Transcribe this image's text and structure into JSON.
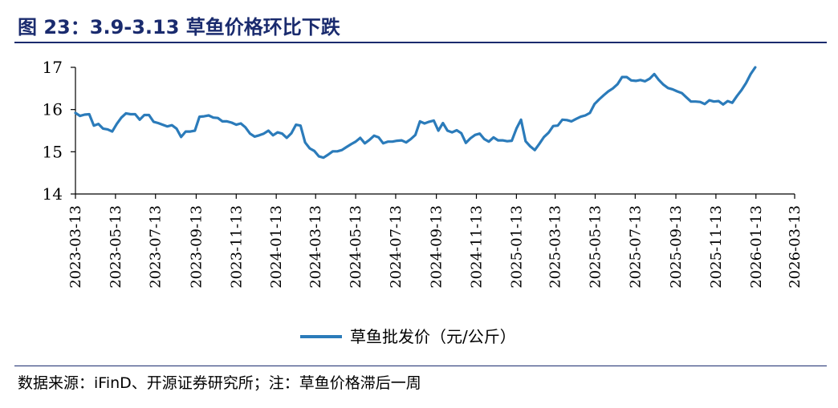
{
  "title": "图 23：3.9-3.13 草鱼价格环比下跌",
  "source": "数据来源：iFinD、开源证券研究所；注：草鱼价格滞后一周",
  "colors": {
    "line": "#2b7bba",
    "title": "#1a2b6e"
  },
  "chart_data": {
    "type": "line",
    "x_tick_labels": [
      "2023-03-13",
      "2023-05-13",
      "2023-07-13",
      "2023-09-13",
      "2023-11-13",
      "2024-01-13",
      "2024-03-13",
      "2024-05-13",
      "2024-07-13",
      "2024-09-13",
      "2024-11-13",
      "2025-01-13",
      "2025-03-13",
      "2025-05-13",
      "2025-07-13",
      "2025-09-13",
      "2025-11-13",
      "2026-01-13",
      "2026-03-13"
    ],
    "y_ticks": [
      14,
      15,
      16,
      17
    ],
    "ylim": [
      14,
      17
    ],
    "xlim": [
      "2023-03-13",
      "2026-03-13"
    ],
    "grid": false,
    "legend_position": "bottom",
    "series": [
      {
        "name": "草鱼批发价（元/公斤）",
        "points": [
          [
            "2023-03-13",
            15.92
          ],
          [
            "2023-03-20",
            15.85
          ],
          [
            "2023-03-27",
            15.88
          ],
          [
            "2023-04-03",
            15.89
          ],
          [
            "2023-04-10",
            15.62
          ],
          [
            "2023-04-17",
            15.66
          ],
          [
            "2023-04-24",
            15.55
          ],
          [
            "2023-05-01",
            15.53
          ],
          [
            "2023-05-08",
            15.48
          ],
          [
            "2023-05-15",
            15.66
          ],
          [
            "2023-05-22",
            15.81
          ],
          [
            "2023-05-29",
            15.91
          ],
          [
            "2023-06-05",
            15.89
          ],
          [
            "2023-06-12",
            15.89
          ],
          [
            "2023-06-19",
            15.76
          ],
          [
            "2023-06-26",
            15.87
          ],
          [
            "2023-07-03",
            15.87
          ],
          [
            "2023-07-10",
            15.71
          ],
          [
            "2023-07-17",
            15.68
          ],
          [
            "2023-07-24",
            15.64
          ],
          [
            "2023-07-31",
            15.6
          ],
          [
            "2023-08-07",
            15.63
          ],
          [
            "2023-08-14",
            15.55
          ],
          [
            "2023-08-21",
            15.35
          ],
          [
            "2023-08-28",
            15.48
          ],
          [
            "2023-09-04",
            15.48
          ],
          [
            "2023-09-11",
            15.5
          ],
          [
            "2023-09-18",
            15.83
          ],
          [
            "2023-09-25",
            15.84
          ],
          [
            "2023-10-02",
            15.86
          ],
          [
            "2023-10-09",
            15.81
          ],
          [
            "2023-10-16",
            15.8
          ],
          [
            "2023-10-23",
            15.72
          ],
          [
            "2023-10-30",
            15.72
          ],
          [
            "2023-11-06",
            15.69
          ],
          [
            "2023-11-13",
            15.64
          ],
          [
            "2023-11-20",
            15.67
          ],
          [
            "2023-11-27",
            15.58
          ],
          [
            "2023-12-04",
            15.43
          ],
          [
            "2023-12-11",
            15.36
          ],
          [
            "2023-12-18",
            15.39
          ],
          [
            "2023-12-25",
            15.43
          ],
          [
            "2024-01-01",
            15.5
          ],
          [
            "2024-01-08",
            15.39
          ],
          [
            "2024-01-15",
            15.46
          ],
          [
            "2024-01-22",
            15.43
          ],
          [
            "2024-01-29",
            15.33
          ],
          [
            "2024-02-05",
            15.44
          ],
          [
            "2024-02-12",
            15.64
          ],
          [
            "2024-02-19",
            15.62
          ],
          [
            "2024-02-26",
            15.22
          ],
          [
            "2024-03-04",
            15.08
          ],
          [
            "2024-03-11",
            15.02
          ],
          [
            "2024-03-18",
            14.89
          ],
          [
            "2024-03-25",
            14.86
          ],
          [
            "2024-04-01",
            14.93
          ],
          [
            "2024-04-08",
            15.01
          ],
          [
            "2024-04-15",
            15.01
          ],
          [
            "2024-04-22",
            15.04
          ],
          [
            "2024-04-29",
            15.11
          ],
          [
            "2024-05-06",
            15.18
          ],
          [
            "2024-05-13",
            15.24
          ],
          [
            "2024-05-20",
            15.33
          ],
          [
            "2024-05-27",
            15.2
          ],
          [
            "2024-06-03",
            15.28
          ],
          [
            "2024-06-10",
            15.38
          ],
          [
            "2024-06-17",
            15.34
          ],
          [
            "2024-06-24",
            15.2
          ],
          [
            "2024-07-01",
            15.24
          ],
          [
            "2024-07-08",
            15.24
          ],
          [
            "2024-07-15",
            15.26
          ],
          [
            "2024-07-22",
            15.27
          ],
          [
            "2024-07-29",
            15.22
          ],
          [
            "2024-08-05",
            15.3
          ],
          [
            "2024-08-12",
            15.4
          ],
          [
            "2024-08-19",
            15.72
          ],
          [
            "2024-08-26",
            15.67
          ],
          [
            "2024-09-02",
            15.71
          ],
          [
            "2024-09-09",
            15.74
          ],
          [
            "2024-09-16",
            15.5
          ],
          [
            "2024-09-23",
            15.68
          ],
          [
            "2024-09-30",
            15.5
          ],
          [
            "2024-10-07",
            15.46
          ],
          [
            "2024-10-14",
            15.51
          ],
          [
            "2024-10-21",
            15.44
          ],
          [
            "2024-10-28",
            15.21
          ],
          [
            "2024-11-04",
            15.32
          ],
          [
            "2024-11-11",
            15.4
          ],
          [
            "2024-11-18",
            15.43
          ],
          [
            "2024-11-25",
            15.3
          ],
          [
            "2024-12-02",
            15.24
          ],
          [
            "2024-12-09",
            15.34
          ],
          [
            "2024-12-16",
            15.27
          ],
          [
            "2024-12-23",
            15.27
          ],
          [
            "2024-12-30",
            15.25
          ],
          [
            "2025-01-06",
            15.26
          ],
          [
            "2025-01-13",
            15.55
          ],
          [
            "2025-01-20",
            15.76
          ],
          [
            "2025-01-27",
            15.25
          ],
          [
            "2025-02-03",
            15.13
          ],
          [
            "2025-02-10",
            15.04
          ],
          [
            "2025-02-17",
            15.19
          ],
          [
            "2025-02-24",
            15.35
          ],
          [
            "2025-03-03",
            15.45
          ],
          [
            "2025-03-10",
            15.61
          ],
          [
            "2025-03-17",
            15.62
          ],
          [
            "2025-03-24",
            15.76
          ],
          [
            "2025-03-31",
            15.75
          ],
          [
            "2025-04-07",
            15.72
          ],
          [
            "2025-04-14",
            15.78
          ],
          [
            "2025-04-21",
            15.83
          ],
          [
            "2025-04-28",
            15.86
          ],
          [
            "2025-05-05",
            15.92
          ],
          [
            "2025-05-12",
            16.13
          ],
          [
            "2025-05-19",
            16.24
          ],
          [
            "2025-05-26",
            16.34
          ],
          [
            "2025-06-02",
            16.43
          ],
          [
            "2025-06-09",
            16.5
          ],
          [
            "2025-06-16",
            16.6
          ],
          [
            "2025-06-23",
            16.77
          ],
          [
            "2025-06-30",
            16.77
          ],
          [
            "2025-07-07",
            16.69
          ],
          [
            "2025-07-14",
            16.68
          ],
          [
            "2025-07-21",
            16.7
          ],
          [
            "2025-07-28",
            16.67
          ],
          [
            "2025-08-04",
            16.73
          ],
          [
            "2025-08-11",
            16.84
          ],
          [
            "2025-08-18",
            16.7
          ],
          [
            "2025-08-25",
            16.59
          ],
          [
            "2025-09-01",
            16.51
          ],
          [
            "2025-09-08",
            16.48
          ],
          [
            "2025-09-15",
            16.43
          ],
          [
            "2025-09-22",
            16.39
          ],
          [
            "2025-09-29",
            16.29
          ],
          [
            "2025-10-06",
            16.19
          ],
          [
            "2025-10-13",
            16.19
          ],
          [
            "2025-10-20",
            16.18
          ],
          [
            "2025-10-27",
            16.13
          ],
          [
            "2025-11-03",
            16.22
          ],
          [
            "2025-11-10",
            16.19
          ],
          [
            "2025-11-17",
            16.2
          ],
          [
            "2025-11-24",
            16.12
          ],
          [
            "2025-12-01",
            16.2
          ],
          [
            "2025-12-08",
            16.16
          ],
          [
            "2025-12-15",
            16.32
          ],
          [
            "2025-12-22",
            16.46
          ],
          [
            "2025-12-29",
            16.63
          ],
          [
            "2026-01-05",
            16.84
          ],
          [
            "2026-01-12",
            17.0
          ]
        ]
      }
    ]
  }
}
